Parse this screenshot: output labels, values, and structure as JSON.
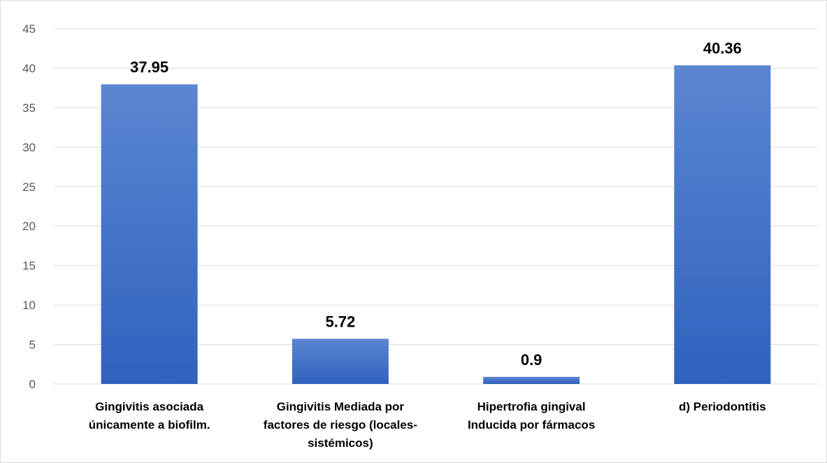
{
  "chart_data": {
    "type": "bar",
    "categories": [
      [
        "Gingivitis asociada",
        "únicamente a biofilm."
      ],
      [
        "Gingivitis Mediada por",
        "factores de riesgo (locales-",
        "sistémicos)"
      ],
      [
        "Hipertrofia gingival",
        "Inducida por fármacos"
      ],
      [
        "d) Periodontitis"
      ]
    ],
    "values": [
      37.95,
      5.72,
      0.9,
      40.36
    ],
    "data_labels": [
      "37.95",
      "5.72",
      "0.9",
      "40.36"
    ],
    "ylim": [
      0,
      45
    ],
    "yticks": [
      0,
      5,
      10,
      15,
      20,
      25,
      30,
      35,
      40,
      45
    ],
    "grid": true,
    "legend": "none",
    "bar_color_top": "#5b86d2",
    "bar_color_bottom": "#3061bd",
    "grid_color": "#d9d9d9",
    "text_color": "#000000",
    "tick_color": "#595959"
  }
}
